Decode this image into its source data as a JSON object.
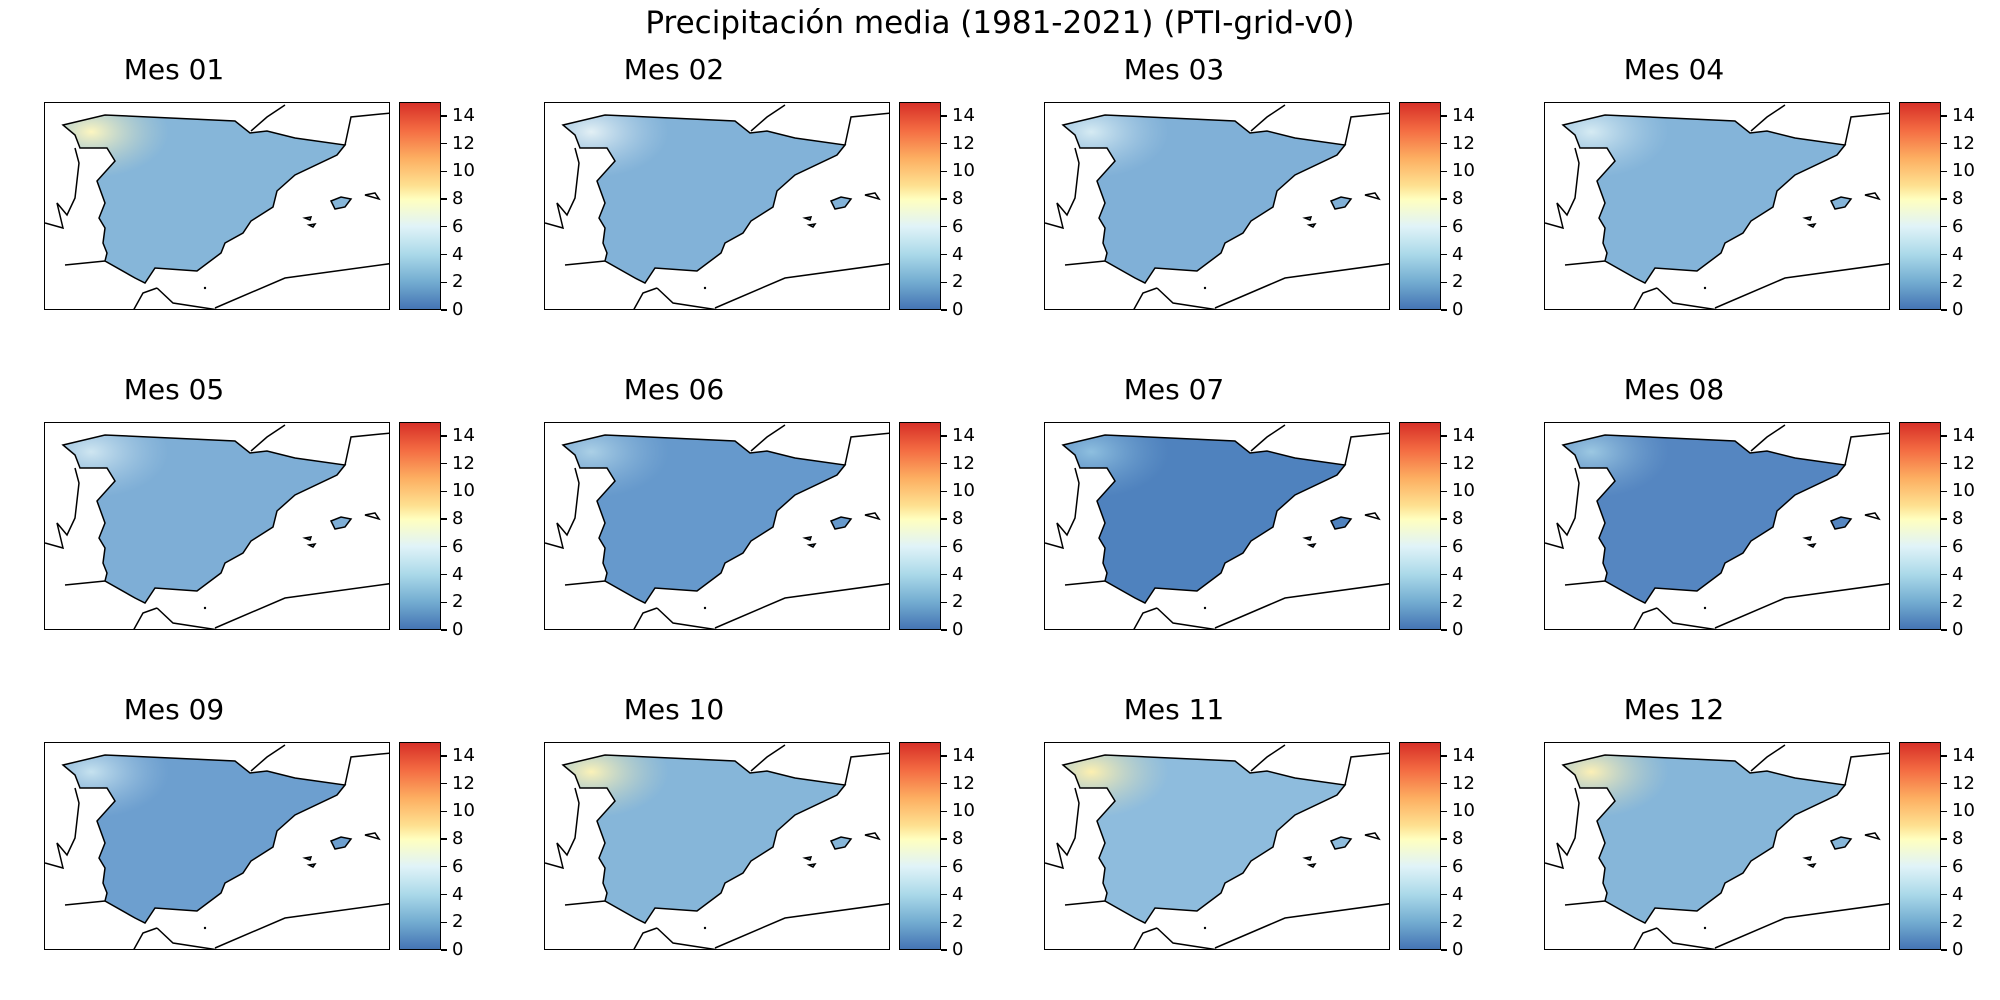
{
  "figure": {
    "title": "Precipitación media (1981-2021) (PTI-grid-v0)"
  },
  "colorbar": {
    "min": 0,
    "max": 15,
    "ticks": [
      "0",
      "2",
      "4",
      "6",
      "8",
      "10",
      "12",
      "14"
    ],
    "colormap": [
      "#4575b4",
      "#74add1",
      "#abd9e9",
      "#e0f3f8",
      "#ffffbf",
      "#fee090",
      "#fdae61",
      "#f46d43",
      "#d73027"
    ]
  },
  "panels": [
    {
      "title": "Mes 01",
      "base_color": "#86b6d9",
      "wet_highlight": "#fdf6c0"
    },
    {
      "title": "Mes 02",
      "base_color": "#82b2d8",
      "wet_highlight": "#e3f0f5"
    },
    {
      "title": "Mes 03",
      "base_color": "#80b0d7",
      "wet_highlight": "#d6ebf3"
    },
    {
      "title": "Mes 04",
      "base_color": "#84b4d9",
      "wet_highlight": "#d6ebf3"
    },
    {
      "title": "Mes 05",
      "base_color": "#7eaed6",
      "wet_highlight": "#cfe6f1"
    },
    {
      "title": "Mes 06",
      "base_color": "#6699cc",
      "wet_highlight": "#abd0e6"
    },
    {
      "title": "Mes 07",
      "base_color": "#4f82be",
      "wet_highlight": "#8ebfdf"
    },
    {
      "title": "Mes 08",
      "base_color": "#5586c1",
      "wet_highlight": "#9cc8e2"
    },
    {
      "title": "Mes 09",
      "base_color": "#6d9fcf",
      "wet_highlight": "#c6e2ef"
    },
    {
      "title": "Mes 10",
      "base_color": "#86b6d9",
      "wet_highlight": "#fbf2b8"
    },
    {
      "title": "Mes 11",
      "base_color": "#8ebcdd",
      "wet_highlight": "#fdf0b0"
    },
    {
      "title": "Mes 12",
      "base_color": "#86b6d9",
      "wet_highlight": "#fcf0b6"
    }
  ]
}
